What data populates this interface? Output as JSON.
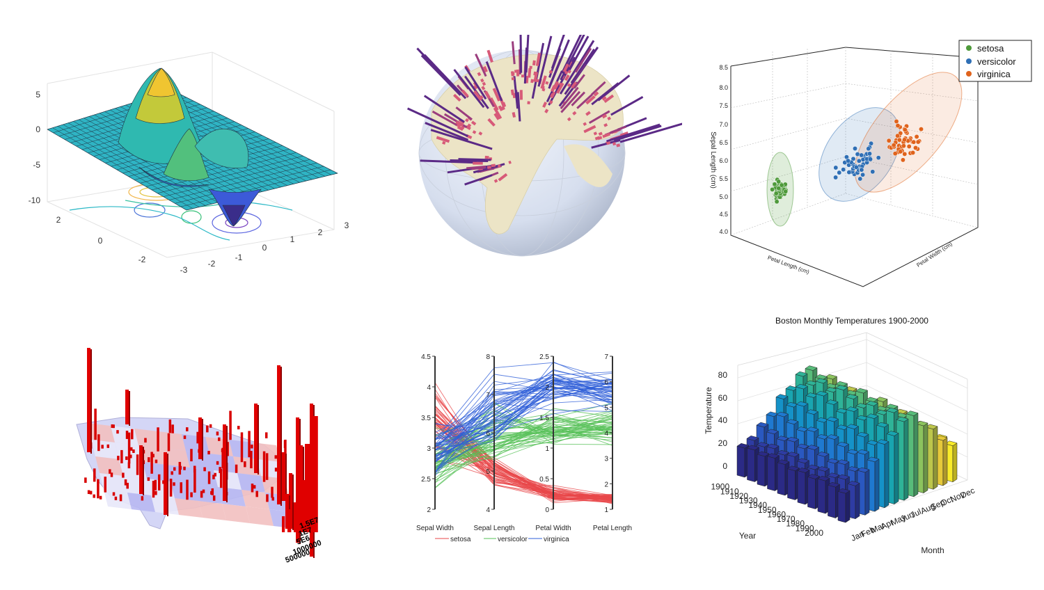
{
  "chart_data": [
    {
      "type": "surface",
      "title": "",
      "z_ticks": [
        "5",
        "0",
        "-5",
        "-10"
      ],
      "x_ticks": [
        "-3",
        "-2",
        "-1",
        "0",
        "1",
        "2",
        "3"
      ],
      "y_ticks": [
        "2",
        "0",
        "-2"
      ],
      "zlim": [
        -10,
        8
      ],
      "colormap": "parula"
    },
    {
      "type": "globe-bars",
      "title": "",
      "colors": {
        "globe": "#dfe6f2",
        "land": "#e8e2c8",
        "bars_low": "#d75a78",
        "bars_high": "#5b2a86"
      }
    },
    {
      "type": "scatter",
      "title": "",
      "zlabel": "Sepal Length (cm)",
      "xlabel": "Petal Length (cm)",
      "ylabel": "Petal Width (cm)",
      "z_ticks": [
        "8.5",
        "8.0",
        "7.5",
        "7.0",
        "6.5",
        "6.0",
        "5.5",
        "5.0",
        "4.5",
        "4.0"
      ],
      "legend_position": "top-right",
      "series": [
        {
          "name": "setosa",
          "color": "#4e9a3a",
          "center": [
            1.46,
            0.25,
            5.0
          ]
        },
        {
          "name": "versicolor",
          "color": "#2f6fb5",
          "center": [
            4.26,
            1.33,
            5.94
          ]
        },
        {
          "name": "virginica",
          "color": "#e0631c",
          "center": [
            5.55,
            2.03,
            6.59
          ]
        }
      ]
    },
    {
      "type": "map-bars",
      "title": "",
      "legend_values": [
        "1.5E7",
        "1E7",
        "5E6",
        "1000000",
        "500000"
      ],
      "colors": {
        "bars": "#e00000",
        "state_high": "#b0b0f0",
        "state_low": "#f4b8b8"
      }
    },
    {
      "type": "parallel-coordinates",
      "title": "",
      "axes": [
        {
          "label": "Sepal Width",
          "ticks": [
            "4.5",
            "4",
            "3.5",
            "3",
            "2.5",
            "2"
          ],
          "range": [
            2,
            4.5
          ]
        },
        {
          "label": "Sepal Length",
          "ticks": [
            "8",
            "7",
            "6",
            "5",
            "4"
          ],
          "range": [
            4,
            8
          ]
        },
        {
          "label": "Petal Width",
          "ticks": [
            "2.5",
            "2",
            "1.5",
            "1",
            "0.5",
            "0"
          ],
          "range": [
            0,
            2.5
          ]
        },
        {
          "label": "Petal Length",
          "ticks": [
            "7",
            "6",
            "5",
            "4",
            "3",
            "2",
            "1"
          ],
          "range": [
            1,
            7
          ]
        }
      ],
      "series": [
        {
          "name": "setosa",
          "color": "#e8474a",
          "means": [
            3.43,
            5.0,
            0.25,
            1.46
          ]
        },
        {
          "name": "versicolor",
          "color": "#56c157",
          "means": [
            2.77,
            5.94,
            1.33,
            4.26
          ]
        },
        {
          "name": "virginica",
          "color": "#2f5fd8",
          "means": [
            2.97,
            6.59,
            2.03,
            5.55
          ]
        }
      ]
    },
    {
      "type": "bar3d",
      "title": "Boston Monthly Temperatures 1900-2000",
      "xlabel": "Month",
      "ylabel": "Year",
      "zlabel": "Temperature",
      "z_ticks": [
        "80",
        "60",
        "40",
        "20",
        "0"
      ],
      "zlim": [
        0,
        80
      ],
      "months": [
        "Jan",
        "Feb",
        "Mar",
        "Apr",
        "May",
        "Jun",
        "Jul",
        "Aug",
        "Sep",
        "Oct",
        "Nov",
        "Dec"
      ],
      "years": [
        "1900",
        "1910",
        "1920",
        "1930",
        "1940",
        "1950",
        "1960",
        "1970",
        "1980",
        "1990",
        "2000"
      ],
      "monthly_means": [
        29,
        31,
        38,
        48,
        58,
        68,
        74,
        72,
        65,
        55,
        45,
        34
      ]
    }
  ]
}
